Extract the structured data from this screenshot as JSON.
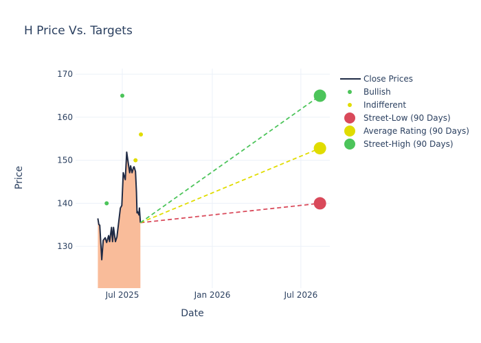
{
  "chart_data": {
    "type": "line",
    "title": "H Price Vs. Targets",
    "xlabel": "Date",
    "ylabel": "Price",
    "ylim": [
      120.3,
      171.3
    ],
    "xlim": [
      "2025-04-06",
      "2026-08-22"
    ],
    "yticks": [
      130,
      140,
      150,
      160,
      170
    ],
    "xticks": [
      {
        "date": "2025-07-01",
        "label": "Jul 2025"
      },
      {
        "date": "2026-01-01",
        "label": "Jan 2026"
      },
      {
        "date": "2026-07-01",
        "label": "Jul 2026"
      }
    ],
    "grid": true,
    "legend_position": "right",
    "close_prices": {
      "name": "Close Prices",
      "color": "#1f2a44",
      "fill": "#f9bc9a",
      "x": [
        "2025-05-12",
        "2025-05-14",
        "2025-05-16",
        "2025-05-20",
        "2025-05-23",
        "2025-05-27",
        "2025-05-30",
        "2025-06-03",
        "2025-06-05",
        "2025-06-09",
        "2025-06-11",
        "2025-06-13",
        "2025-06-17",
        "2025-06-20",
        "2025-06-27",
        "2025-06-30",
        "2025-07-03",
        "2025-07-07",
        "2025-07-10",
        "2025-07-12",
        "2025-07-16",
        "2025-07-18",
        "2025-07-21",
        "2025-07-24",
        "2025-07-25",
        "2025-07-28",
        "2025-07-30",
        "2025-07-31",
        "2025-08-01",
        "2025-08-04",
        "2025-08-05",
        "2025-08-07"
      ],
      "y": [
        136.5,
        135.1,
        134.9,
        126.9,
        131.4,
        132.0,
        130.9,
        132.5,
        131.1,
        134.4,
        131.1,
        134.4,
        131.1,
        132.2,
        138.9,
        139.5,
        147.1,
        145.5,
        151.9,
        150.3,
        147.1,
        148.7,
        147.1,
        148.4,
        148.5,
        147.4,
        142.6,
        137.8,
        138.1,
        137.3,
        138.9,
        135.5
      ]
    },
    "bullish": {
      "name": "Bullish",
      "color": "#4cc45a",
      "points": [
        {
          "x": "2025-05-30",
          "y": 140
        },
        {
          "x": "2025-07-01",
          "y": 165
        }
      ]
    },
    "indifferent": {
      "name": "Indifferent",
      "color": "#e0dc00",
      "points": [
        {
          "x": "2025-07-28",
          "y": 150
        },
        {
          "x": "2025-08-08",
          "y": 156
        }
      ]
    },
    "targets": {
      "start": {
        "x": "2025-08-07",
        "y": 135.5
      },
      "end_date": "2026-08-09",
      "series": [
        {
          "name": "Street-Low (90 Days)",
          "value": 140,
          "color": "#d9495a"
        },
        {
          "name": "Average Rating (90 Days)",
          "value": 152.8,
          "color": "#e0dc00"
        },
        {
          "name": "Street-High (90 Days)",
          "value": 165,
          "color": "#4cc45a"
        }
      ]
    }
  }
}
